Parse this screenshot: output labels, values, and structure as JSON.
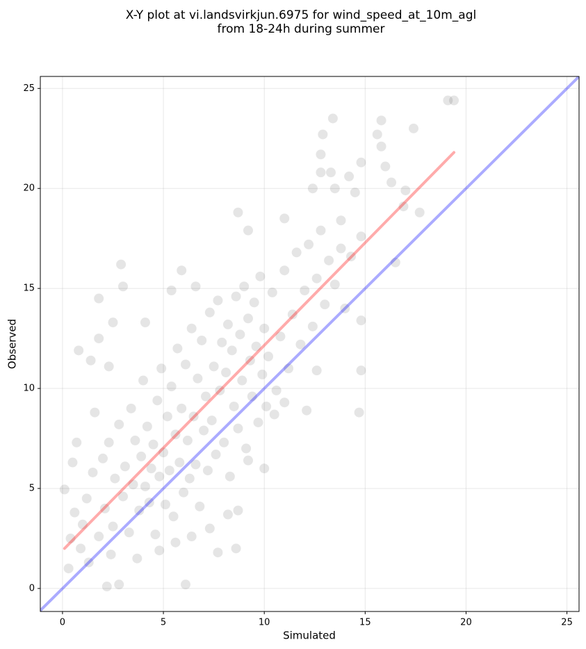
{
  "chart_data": {
    "type": "scatter",
    "title": [
      "X-Y plot at vi.landsvirkjun.6975 for wind_speed_at_10m_agl",
      "from 18-24h during summer"
    ],
    "x_label": "Simulated",
    "y_label": "Observed",
    "xlim": [
      -1.1,
      25.6
    ],
    "ylim": [
      -1.15,
      25.6
    ],
    "xticks": [
      0,
      5,
      10,
      15,
      20,
      25
    ],
    "yticks": [
      0,
      5,
      10,
      15,
      20,
      25
    ],
    "grid": true,
    "series": [
      {
        "color": "#000000",
        "alpha": 0.1,
        "x": [
          19.1,
          19.4,
          13.4,
          17.4,
          15.8,
          15.6,
          12.9,
          15.8,
          12.8,
          14.8,
          16.0,
          12.8,
          13.3,
          14.2,
          16.3,
          12.4,
          13.5,
          17.0,
          14.5,
          16.9,
          17.7,
          8.7,
          9.2,
          11.0,
          13.8,
          14.8,
          16.5,
          14.8,
          14.8,
          14.7,
          2.9,
          3.0,
          1.8,
          5.9,
          6.6,
          5.4,
          0.1,
          0.6,
          0.3,
          2.2,
          2.8,
          6.1,
          8.6,
          7.7,
          2.5,
          4.1,
          1.8,
          0.8,
          1.4,
          2.3,
          12.6,
          11.0,
          12.1,
          10.1,
          10.5,
          9.2,
          10.0,
          8.7,
          7.3,
          8.2,
          1.0,
          1.2,
          1.5,
          1.8,
          2.0,
          2.1,
          2.3,
          2.5,
          2.6,
          2.8,
          3.0,
          3.1,
          3.3,
          3.4,
          3.5,
          3.6,
          3.8,
          3.9,
          4.0,
          4.1,
          4.2,
          4.3,
          4.4,
          4.5,
          4.6,
          4.7,
          4.8,
          4.9,
          5.0,
          5.1,
          5.2,
          5.3,
          5.4,
          5.5,
          5.6,
          5.7,
          5.8,
          5.9,
          6.0,
          6.1,
          6.2,
          6.3,
          6.4,
          6.5,
          6.6,
          6.7,
          6.8,
          6.9,
          7.0,
          7.1,
          7.2,
          7.3,
          7.4,
          7.5,
          7.6,
          7.7,
          7.8,
          7.9,
          8.0,
          8.1,
          8.2,
          8.3,
          8.4,
          8.5,
          8.6,
          8.7,
          8.8,
          8.9,
          9.0,
          9.1,
          9.2,
          9.3,
          9.4,
          9.5,
          9.6,
          9.7,
          9.8,
          9.9,
          10.0,
          10.2,
          10.4,
          10.6,
          10.8,
          11.0,
          11.2,
          11.4,
          11.6,
          11.8,
          12.0,
          12.2,
          12.4,
          12.6,
          12.8,
          13.0,
          13.2,
          13.5,
          13.8,
          14.0,
          14.3,
          0.5,
          0.7,
          0.9,
          1.3,
          1.6,
          2.4,
          3.7,
          4.8,
          5.6,
          6.4,
          0.4
        ],
        "y": [
          24.4,
          24.4,
          23.5,
          23.0,
          23.4,
          22.7,
          22.7,
          22.1,
          21.7,
          21.3,
          21.1,
          20.8,
          20.8,
          20.6,
          20.3,
          20.0,
          20.0,
          19.9,
          19.8,
          19.1,
          18.8,
          18.8,
          17.9,
          18.5,
          18.4,
          17.6,
          16.3,
          13.4,
          10.9,
          8.8,
          16.2,
          15.1,
          14.5,
          15.9,
          15.1,
          14.9,
          4.95,
          3.8,
          1.0,
          0.1,
          0.2,
          0.2,
          2.0,
          1.8,
          13.3,
          13.3,
          12.5,
          11.9,
          11.4,
          11.1,
          10.9,
          9.3,
          8.9,
          9.1,
          8.7,
          6.4,
          6.0,
          3.9,
          3.0,
          3.7,
          3.2,
          4.5,
          5.8,
          2.6,
          6.5,
          4.0,
          7.3,
          3.1,
          5.5,
          8.2,
          4.6,
          6.1,
          2.8,
          9.0,
          5.2,
          7.4,
          3.9,
          6.6,
          10.4,
          5.1,
          8.1,
          4.3,
          6.0,
          7.2,
          2.7,
          9.4,
          5.6,
          11.0,
          6.8,
          4.2,
          8.6,
          5.9,
          10.1,
          3.6,
          7.7,
          12.0,
          6.3,
          9.0,
          4.8,
          11.2,
          7.4,
          5.5,
          13.0,
          8.6,
          6.2,
          10.5,
          4.1,
          12.4,
          7.9,
          9.6,
          5.9,
          13.8,
          8.4,
          11.1,
          6.7,
          14.4,
          9.9,
          12.3,
          7.3,
          10.8,
          13.2,
          5.6,
          11.9,
          9.1,
          14.6,
          8.0,
          12.7,
          10.4,
          15.1,
          7.0,
          13.5,
          11.4,
          9.6,
          14.3,
          12.1,
          8.3,
          15.6,
          10.7,
          13.0,
          11.6,
          14.8,
          9.9,
          12.6,
          15.9,
          11.0,
          13.7,
          16.8,
          12.2,
          14.9,
          17.2,
          13.1,
          15.5,
          17.9,
          14.2,
          16.4,
          15.2,
          17.0,
          14.0,
          16.6,
          6.3,
          7.3,
          2.0,
          1.3,
          8.8,
          1.7,
          1.5,
          1.9,
          2.3,
          2.6,
          2.5
        ]
      }
    ],
    "lines": [
      {
        "color": "#ff0000",
        "x": [
          0.1,
          19.4
        ],
        "y": [
          2.0,
          21.8
        ]
      },
      {
        "color": "#0000ff",
        "x": [
          -1.1,
          25.6
        ],
        "y": [
          -1.1,
          25.6
        ]
      }
    ]
  }
}
